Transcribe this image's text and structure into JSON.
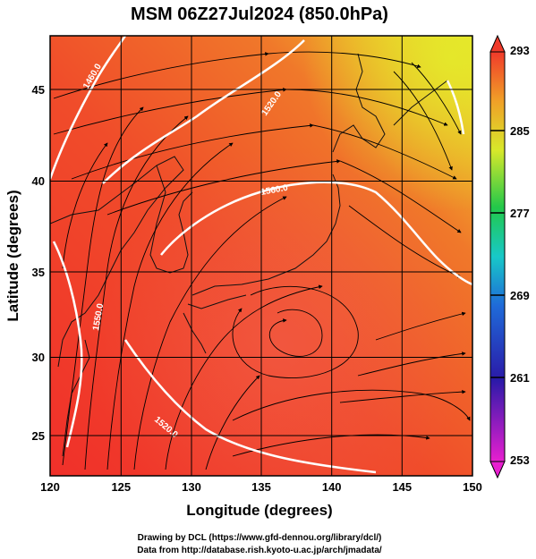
{
  "title": "MSM 06Z27Jul2024 (850.0hPa)",
  "xaxis": {
    "label": "Longitude (degrees)",
    "range": [
      120,
      150
    ],
    "ticks": [
      "120",
      "125",
      "130",
      "135",
      "140",
      "145",
      "150"
    ]
  },
  "yaxis": {
    "label": "Latitude  (degrees)",
    "range": [
      22.4,
      47.6
    ],
    "ticks": [
      "25",
      "30",
      "35",
      "40",
      "45"
    ]
  },
  "colorbar": {
    "min": 253,
    "max": 293,
    "ticks": [
      "293",
      "285",
      "277",
      "269",
      "261",
      "253"
    ]
  },
  "contour_labels": [
    "1460.0",
    "1520.0",
    "1560.0",
    "1550.0",
    "1520.0"
  ],
  "credits": {
    "line1": "Drawing by DCL (https://www.gfd-dennou.org/library/dcl/)",
    "line2": "Data from http://database.rish.kyoto-u.ac.jp/arch/jmadata/"
  },
  "colors": {
    "warm": "#f04a2a",
    "orange": "#f07a28",
    "yellow": "#e6e02a",
    "contour": "#ffffff",
    "grid": "#000000"
  }
}
